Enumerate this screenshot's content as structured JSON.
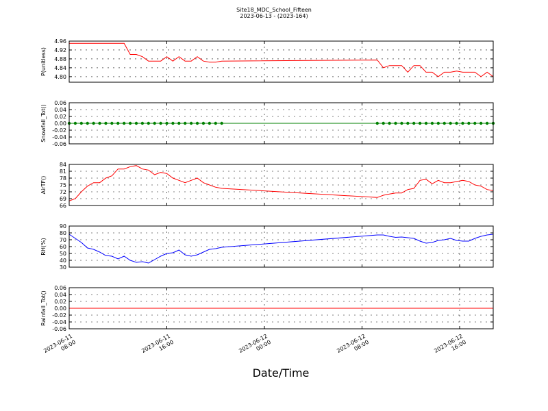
{
  "chart_data": {
    "type": "line",
    "title": "Site18_MDC_School_Fifteen",
    "subtitle": "2023-06-13 - (2023-164)",
    "xlabel": "Date/Time",
    "grid": true,
    "xlim": [
      "2023-06-11 08:00",
      "2023-06-12 18:45"
    ],
    "xticks": [
      {
        "value": "2023-06-11 08:00",
        "label": "2023-06-11\n08:00"
      },
      {
        "value": "2023-06-11 16:00",
        "label": "2023-06-11\n16:00"
      },
      {
        "value": "2023-06-12 00:00",
        "label": "2023-06-12\n00:00"
      },
      {
        "value": "2023-06-12 08:00",
        "label": "2023-06-12\n08:00"
      },
      {
        "value": "2023-06-12 16:00",
        "label": "2023-06-12\n16:00"
      }
    ],
    "x": [
      "2023-06-11 08:00",
      "2023-06-11 08:30",
      "2023-06-11 09:00",
      "2023-06-11 09:30",
      "2023-06-11 10:00",
      "2023-06-11 10:30",
      "2023-06-11 11:00",
      "2023-06-11 11:30",
      "2023-06-11 12:00",
      "2023-06-11 12:30",
      "2023-06-11 13:00",
      "2023-06-11 13:30",
      "2023-06-11 14:00",
      "2023-06-11 14:30",
      "2023-06-11 15:00",
      "2023-06-11 15:30",
      "2023-06-11 16:00",
      "2023-06-11 16:30",
      "2023-06-11 17:00",
      "2023-06-11 17:30",
      "2023-06-11 18:00",
      "2023-06-11 18:30",
      "2023-06-11 19:00",
      "2023-06-11 19:30",
      "2023-06-11 20:00",
      "2023-06-11 20:30",
      "2023-06-12 09:15",
      "2023-06-12 09:45",
      "2023-06-12 10:15",
      "2023-06-12 10:45",
      "2023-06-12 11:15",
      "2023-06-12 11:45",
      "2023-06-12 12:15",
      "2023-06-12 12:45",
      "2023-06-12 13:15",
      "2023-06-12 13:45",
      "2023-06-12 14:15",
      "2023-06-12 14:45",
      "2023-06-12 15:15",
      "2023-06-12 15:45",
      "2023-06-12 16:15",
      "2023-06-12 16:45",
      "2023-06-12 17:15",
      "2023-06-12 17:45",
      "2023-06-12 18:15",
      "2023-06-12 18:45"
    ],
    "panels": [
      {
        "ylabel": "P(unitless)",
        "ylim": [
          4.775,
          4.96
        ],
        "yticks": [
          {
            "value": 4.8,
            "label": "4.80"
          },
          4.84,
          4.88,
          4.92,
          4.96
        ],
        "series": [
          {
            "color": "#ff0000",
            "markers": false,
            "values": [
              4.95,
              4.95,
              4.95,
              4.95,
              4.95,
              4.95,
              4.95,
              4.95,
              4.95,
              4.95,
              4.9,
              4.9,
              4.89,
              4.87,
              4.87,
              4.87,
              4.89,
              4.87,
              4.89,
              4.87,
              4.87,
              4.89,
              4.87,
              4.865,
              4.865,
              4.87,
              4.875,
              4.84,
              4.85,
              4.85,
              4.85,
              4.82,
              4.85,
              4.85,
              4.82,
              4.82,
              4.8,
              4.82,
              4.82,
              4.825,
              4.82,
              4.82,
              4.82,
              4.8,
              4.82,
              4.8
            ]
          }
        ]
      },
      {
        "ylabel": "Snowfall_Tot()",
        "ylim": [
          -0.06,
          0.06
        ],
        "yticks": [
          -0.06,
          -0.04,
          -0.02,
          {
            "value": 0,
            "label": "0.00"
          },
          0.02,
          0.04,
          0.06
        ],
        "series": [
          {
            "color": "#008000",
            "markers": true,
            "values": [
              0,
              0,
              0,
              0,
              0,
              0,
              0,
              0,
              0,
              0,
              0,
              0,
              0,
              0,
              0,
              0,
              0,
              0,
              0,
              0,
              0,
              0,
              0,
              0,
              0,
              0,
              0,
              0,
              0,
              0,
              0,
              0,
              0,
              0,
              0,
              0,
              0,
              0,
              0,
              0,
              0,
              0,
              0,
              0,
              0,
              0
            ]
          }
        ]
      },
      {
        "ylabel": "AirTF()",
        "ylim": [
          66,
          84
        ],
        "yticks": [
          66,
          69,
          72,
          75,
          78,
          81,
          84
        ],
        "series": [
          {
            "color": "#ff0000",
            "markers": false,
            "values": [
              68,
              69,
              72,
              74.5,
              76,
              76,
              78,
              79,
              82,
              82,
              83,
              83.5,
              82,
              81.5,
              79.5,
              80.5,
              80,
              78,
              77,
              76,
              77,
              78,
              76,
              75,
              74,
              73.5,
              69.5,
              70.5,
              71,
              71.5,
              71.5,
              73,
              73.5,
              77,
              77.5,
              75.5,
              77,
              76,
              76,
              76.5,
              77,
              76.5,
              75,
              74.5,
              73,
              72.5
            ]
          }
        ]
      },
      {
        "ylabel": "RH(%)",
        "ylim": [
          30,
          90
        ],
        "yticks": [
          30,
          40,
          50,
          60,
          70,
          80,
          90
        ],
        "series": [
          {
            "color": "#0000ff",
            "markers": false,
            "values": [
              78,
              72,
              66,
              58,
              56,
              52,
              47,
              46,
              42,
              46,
              40,
              37,
              38,
              36,
              41,
              46,
              50,
              51,
              55,
              48,
              46,
              48,
              52,
              56,
              57,
              59,
              77,
              77,
              75,
              73.5,
              74,
              73,
              72,
              68,
              65,
              66,
              69,
              70,
              72,
              69,
              68,
              68,
              72,
              75,
              77,
              78
            ]
          }
        ]
      },
      {
        "ylabel": "Rainfall_Tot()",
        "ylim": [
          -0.06,
          0.06
        ],
        "yticks": [
          -0.06,
          -0.04,
          -0.02,
          {
            "value": 0,
            "label": "0.00"
          },
          0.02,
          0.04,
          0.06
        ],
        "series": [
          {
            "color": "#ff0000",
            "markers": false,
            "values": [
              0,
              0,
              0,
              0,
              0,
              0,
              0,
              0,
              0,
              0,
              0,
              0,
              0,
              0,
              0,
              0,
              0,
              0,
              0,
              0,
              0,
              0,
              0,
              0,
              0,
              0,
              0,
              0,
              0,
              0,
              0,
              0,
              0,
              0,
              0,
              0,
              0,
              0,
              0,
              0,
              0,
              0,
              0,
              0,
              0,
              0
            ]
          }
        ]
      }
    ]
  }
}
